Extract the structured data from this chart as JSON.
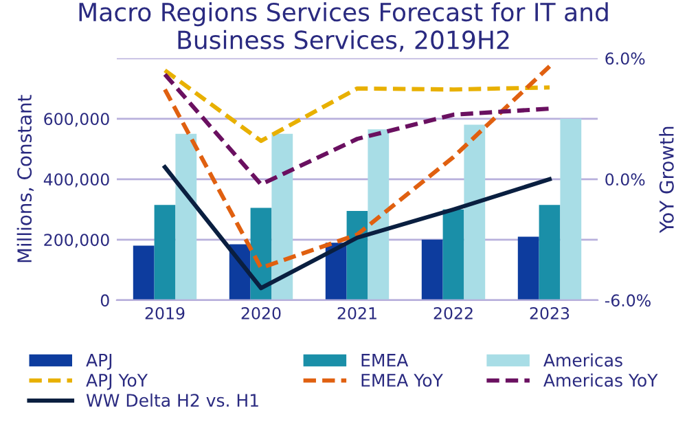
{
  "chart_data": {
    "type": "bar",
    "title": "Macro Regions Services Forecast for IT and\nBusiness Services, 2019H2",
    "ylabel": "Millions, Constant",
    "y2label": "YoY Growth",
    "categories": [
      "2019",
      "2020",
      "2021",
      "2022",
      "2023"
    ],
    "series": [
      {
        "name": "APJ",
        "color": "#0d3c9e",
        "values": [
          180000,
          185000,
          190000,
          200000,
          210000
        ]
      },
      {
        "name": "EMEA",
        "color": "#1a8fa8",
        "values": [
          315000,
          305000,
          295000,
          300000,
          315000
        ]
      },
      {
        "name": "Americas",
        "color": "#a8dde6",
        "values": [
          550000,
          550000,
          565000,
          580000,
          600000
        ]
      },
      {
        "name": "APJ YoY",
        "type": "line",
        "axis": "y2",
        "line_style": "dashed",
        "color": "#e8b000",
        "values": [
          5.4,
          1.9,
          4.5,
          4.45,
          4.55
        ]
      },
      {
        "name": "EMEA YoY",
        "type": "line",
        "axis": "y2",
        "line_style": "dashed",
        "color": "#e06010",
        "values": [
          4.45,
          -4.4,
          -2.75,
          1.1,
          5.6
        ]
      },
      {
        "name": "Americas YoY",
        "type": "line",
        "axis": "y2",
        "line_style": "dashed",
        "color": "#6a1060",
        "values": [
          5.2,
          -0.26,
          2.0,
          3.2,
          3.5
        ]
      },
      {
        "name": "WW Delta H2 vs. H1",
        "type": "line",
        "axis": "y2",
        "line_style": "solid",
        "color": "#0a1f40",
        "values": [
          0.6,
          -5.4,
          -2.9,
          -1.5,
          0.0
        ]
      }
    ],
    "ylim": [
      0,
      800000
    ],
    "yticks": [
      {
        "value": 0,
        "label": "0"
      },
      {
        "value": 200000,
        "label": "200,000"
      },
      {
        "value": 400000,
        "label": "400,000"
      },
      {
        "value": 600000,
        "label": "600,000"
      },
      {
        "value": 800000,
        "label": null
      }
    ],
    "y2lim": [
      -6,
      6
    ],
    "y2ticks": [
      {
        "value": -6,
        "label": "-6.0%"
      },
      {
        "value": -3,
        "label": null
      },
      {
        "value": 0,
        "label": "0.0%"
      },
      {
        "value": 3,
        "label": null
      },
      {
        "value": 6,
        "label": "6.0%"
      }
    ],
    "grid": "y",
    "legend": "bottom",
    "marker": "none"
  }
}
